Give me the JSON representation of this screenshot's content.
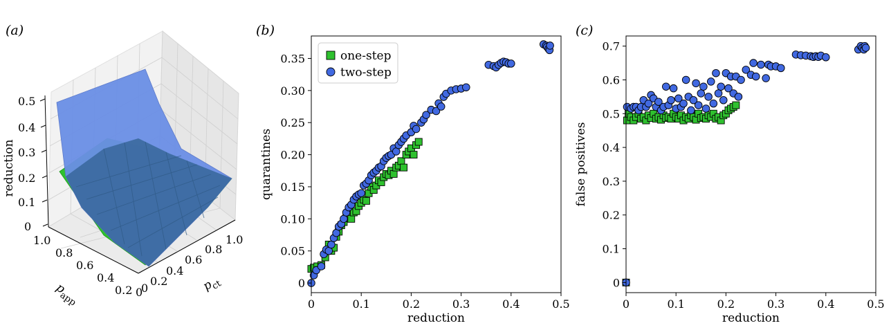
{
  "figure": {
    "panels": [
      {
        "label": "(a)"
      },
      {
        "label": "(b)"
      },
      {
        "label": "(c)"
      }
    ],
    "surface": {
      "zlabel": "reduction",
      "xlabel_main": "p",
      "xlabel_sub": "app",
      "ylabel_main": "p",
      "ylabel_sub": "ct",
      "zticks": [
        "0",
        "0.1",
        "0.2",
        "0.3",
        "0.4",
        "0.5"
      ],
      "xticks": [
        "1.0",
        "0.8",
        "0.6",
        "0.4",
        "0.2",
        "0"
      ],
      "yticks": [
        "0",
        "0.2",
        "0.4",
        "0.6",
        "0.8",
        "1.0"
      ],
      "colors": {
        "upper": "#6b8fe6",
        "lower": "#2fc12f",
        "mixed": "#3c6aa0"
      }
    }
  },
  "chart_data": [
    {
      "type": "scatter",
      "panel": "(b)",
      "xlabel": "reduction",
      "ylabel": "quarantines",
      "xlim": [
        0,
        0.5
      ],
      "ylim": [
        -0.015,
        0.385
      ],
      "xticks": [
        0,
        0.1,
        0.2,
        0.3,
        0.4,
        0.5
      ],
      "xtick_labels": [
        "0",
        "0.1",
        "0.2",
        "0.3",
        "0.4",
        "0.5"
      ],
      "yticks": [
        0,
        0.05,
        0.1,
        0.15,
        0.2,
        0.25,
        0.3,
        0.35
      ],
      "ytick_labels": [
        "0",
        "0.05",
        "0.10",
        "0.15",
        "0.20",
        "0.25",
        "0.30",
        "0.35"
      ],
      "legend": "top-left",
      "grid": false,
      "series": [
        {
          "name": "one-step",
          "marker": "square",
          "color": "#2fc12f",
          "points": [
            [
              0.0,
              0.022
            ],
            [
              0.005,
              0.024
            ],
            [
              0.012,
              0.026
            ],
            [
              0.02,
              0.028
            ],
            [
              0.028,
              0.04
            ],
            [
              0.035,
              0.06
            ],
            [
              0.04,
              0.05
            ],
            [
              0.045,
              0.055
            ],
            [
              0.05,
              0.072
            ],
            [
              0.055,
              0.08
            ],
            [
              0.06,
              0.09
            ],
            [
              0.065,
              0.095
            ],
            [
              0.07,
              0.101
            ],
            [
              0.075,
              0.105
            ],
            [
              0.08,
              0.1
            ],
            [
              0.085,
              0.11
            ],
            [
              0.09,
              0.112
            ],
            [
              0.095,
              0.12
            ],
            [
              0.1,
              0.125
            ],
            [
              0.105,
              0.13
            ],
            [
              0.11,
              0.128
            ],
            [
              0.115,
              0.14
            ],
            [
              0.12,
              0.15
            ],
            [
              0.125,
              0.145
            ],
            [
              0.13,
              0.152
            ],
            [
              0.135,
              0.16
            ],
            [
              0.14,
              0.157
            ],
            [
              0.145,
              0.165
            ],
            [
              0.15,
              0.17
            ],
            [
              0.155,
              0.168
            ],
            [
              0.16,
              0.175
            ],
            [
              0.165,
              0.17
            ],
            [
              0.17,
              0.18
            ],
            [
              0.175,
              0.183
            ],
            [
              0.18,
              0.19
            ],
            [
              0.185,
              0.18
            ],
            [
              0.19,
              0.2
            ],
            [
              0.195,
              0.205
            ],
            [
              0.2,
              0.21
            ],
            [
              0.205,
              0.2
            ],
            [
              0.21,
              0.215
            ],
            [
              0.215,
              0.22
            ]
          ]
        },
        {
          "name": "two-step",
          "marker": "circle",
          "color": "#4169e1",
          "points": [
            [
              0.0,
              0.0
            ],
            [
              0.005,
              0.012
            ],
            [
              0.01,
              0.02
            ],
            [
              0.02,
              0.026
            ],
            [
              0.025,
              0.045
            ],
            [
              0.03,
              0.052
            ],
            [
              0.035,
              0.05
            ],
            [
              0.04,
              0.06
            ],
            [
              0.045,
              0.07
            ],
            [
              0.05,
              0.078
            ],
            [
              0.055,
              0.088
            ],
            [
              0.06,
              0.092
            ],
            [
              0.065,
              0.1
            ],
            [
              0.07,
              0.11
            ],
            [
              0.075,
              0.118
            ],
            [
              0.08,
              0.122
            ],
            [
              0.085,
              0.13
            ],
            [
              0.09,
              0.135
            ],
            [
              0.095,
              0.138
            ],
            [
              0.1,
              0.14
            ],
            [
              0.105,
              0.152
            ],
            [
              0.11,
              0.155
            ],
            [
              0.115,
              0.16
            ],
            [
              0.12,
              0.168
            ],
            [
              0.125,
              0.172
            ],
            [
              0.13,
              0.175
            ],
            [
              0.135,
              0.18
            ],
            [
              0.14,
              0.182
            ],
            [
              0.145,
              0.19
            ],
            [
              0.15,
              0.195
            ],
            [
              0.155,
              0.198
            ],
            [
              0.16,
              0.2
            ],
            [
              0.165,
              0.21
            ],
            [
              0.17,
              0.205
            ],
            [
              0.175,
              0.215
            ],
            [
              0.18,
              0.22
            ],
            [
              0.185,
              0.225
            ],
            [
              0.19,
              0.23
            ],
            [
              0.2,
              0.235
            ],
            [
              0.205,
              0.245
            ],
            [
              0.21,
              0.24
            ],
            [
              0.22,
              0.25
            ],
            [
              0.225,
              0.255
            ],
            [
              0.23,
              0.262
            ],
            [
              0.24,
              0.27
            ],
            [
              0.25,
              0.268
            ],
            [
              0.255,
              0.28
            ],
            [
              0.26,
              0.275
            ],
            [
              0.265,
              0.29
            ],
            [
              0.27,
              0.295
            ],
            [
              0.28,
              0.3
            ],
            [
              0.29,
              0.302
            ],
            [
              0.3,
              0.303
            ],
            [
              0.31,
              0.305
            ],
            [
              0.355,
              0.34
            ],
            [
              0.365,
              0.338
            ],
            [
              0.37,
              0.336
            ],
            [
              0.375,
              0.34
            ],
            [
              0.38,
              0.343
            ],
            [
              0.385,
              0.345
            ],
            [
              0.39,
              0.344
            ],
            [
              0.395,
              0.342
            ],
            [
              0.4,
              0.342
            ],
            [
              0.465,
              0.372
            ],
            [
              0.47,
              0.37
            ],
            [
              0.472,
              0.368
            ],
            [
              0.475,
              0.365
            ],
            [
              0.477,
              0.363
            ],
            [
              0.478,
              0.37
            ]
          ]
        }
      ]
    },
    {
      "type": "scatter",
      "panel": "(c)",
      "xlabel": "reduction",
      "ylabel": "false positives",
      "xlim": [
        0,
        0.5
      ],
      "ylim": [
        -0.03,
        0.73
      ],
      "xticks": [
        0,
        0.1,
        0.2,
        0.3,
        0.4,
        0.5
      ],
      "xtick_labels": [
        "0",
        "0.1",
        "0.2",
        "0.3",
        "0.4",
        "0.5"
      ],
      "yticks": [
        0,
        0.1,
        0.2,
        0.3,
        0.4,
        0.5,
        0.6,
        0.7
      ],
      "ytick_labels": [
        "0",
        "0.1",
        "0.2",
        "0.3",
        "0.4",
        "0.5",
        "0.6",
        "0.7"
      ],
      "grid": false,
      "series": [
        {
          "name": "one-step",
          "marker": "square",
          "color": "#2fc12f",
          "points": [
            [
              0.0,
              0.0
            ],
            [
              0.002,
              0.48
            ],
            [
              0.005,
              0.5
            ],
            [
              0.01,
              0.49
            ],
            [
              0.015,
              0.48
            ],
            [
              0.02,
              0.49
            ],
            [
              0.025,
              0.5
            ],
            [
              0.03,
              0.485
            ],
            [
              0.035,
              0.49
            ],
            [
              0.04,
              0.48
            ],
            [
              0.045,
              0.495
            ],
            [
              0.05,
              0.487
            ],
            [
              0.055,
              0.5
            ],
            [
              0.06,
              0.485
            ],
            [
              0.065,
              0.49
            ],
            [
              0.07,
              0.482
            ],
            [
              0.075,
              0.495
            ],
            [
              0.08,
              0.487
            ],
            [
              0.085,
              0.49
            ],
            [
              0.09,
              0.485
            ],
            [
              0.095,
              0.5
            ],
            [
              0.1,
              0.49
            ],
            [
              0.105,
              0.485
            ],
            [
              0.11,
              0.495
            ],
            [
              0.115,
              0.48
            ],
            [
              0.12,
              0.49
            ],
            [
              0.125,
              0.485
            ],
            [
              0.13,
              0.495
            ],
            [
              0.135,
              0.49
            ],
            [
              0.14,
              0.482
            ],
            [
              0.145,
              0.5
            ],
            [
              0.15,
              0.487
            ],
            [
              0.155,
              0.49
            ],
            [
              0.16,
              0.485
            ],
            [
              0.165,
              0.495
            ],
            [
              0.17,
              0.49
            ],
            [
              0.175,
              0.5
            ],
            [
              0.18,
              0.485
            ],
            [
              0.185,
              0.49
            ],
            [
              0.19,
              0.48
            ],
            [
              0.195,
              0.495
            ],
            [
              0.2,
              0.5
            ],
            [
              0.205,
              0.51
            ],
            [
              0.21,
              0.515
            ],
            [
              0.215,
              0.52
            ],
            [
              0.22,
              0.525
            ]
          ]
        },
        {
          "name": "two-step",
          "marker": "circle",
          "color": "#4169e1",
          "points": [
            [
              0.0,
              0.0
            ],
            [
              0.002,
              0.52
            ],
            [
              0.01,
              0.515
            ],
            [
              0.015,
              0.52
            ],
            [
              0.02,
              0.52
            ],
            [
              0.025,
              0.51
            ],
            [
              0.03,
              0.52
            ],
            [
              0.035,
              0.54
            ],
            [
              0.04,
              0.52
            ],
            [
              0.045,
              0.53
            ],
            [
              0.05,
              0.555
            ],
            [
              0.055,
              0.545
            ],
            [
              0.06,
              0.52
            ],
            [
              0.065,
              0.535
            ],
            [
              0.07,
              0.51
            ],
            [
              0.075,
              0.52
            ],
            [
              0.08,
              0.58
            ],
            [
              0.085,
              0.525
            ],
            [
              0.09,
              0.54
            ],
            [
              0.095,
              0.575
            ],
            [
              0.1,
              0.515
            ],
            [
              0.105,
              0.545
            ],
            [
              0.11,
              0.52
            ],
            [
              0.115,
              0.53
            ],
            [
              0.12,
              0.6
            ],
            [
              0.125,
              0.55
            ],
            [
              0.13,
              0.51
            ],
            [
              0.135,
              0.54
            ],
            [
              0.14,
              0.59
            ],
            [
              0.145,
              0.525
            ],
            [
              0.15,
              0.56
            ],
            [
              0.155,
              0.58
            ],
            [
              0.16,
              0.515
            ],
            [
              0.165,
              0.55
            ],
            [
              0.17,
              0.595
            ],
            [
              0.175,
              0.53
            ],
            [
              0.18,
              0.62
            ],
            [
              0.185,
              0.56
            ],
            [
              0.19,
              0.58
            ],
            [
              0.195,
              0.54
            ],
            [
              0.2,
              0.62
            ],
            [
              0.205,
              0.575
            ],
            [
              0.21,
              0.61
            ],
            [
              0.215,
              0.56
            ],
            [
              0.22,
              0.61
            ],
            [
              0.225,
              0.55
            ],
            [
              0.23,
              0.6
            ],
            [
              0.24,
              0.63
            ],
            [
              0.25,
              0.615
            ],
            [
              0.255,
              0.65
            ],
            [
              0.26,
              0.61
            ],
            [
              0.27,
              0.645
            ],
            [
              0.28,
              0.605
            ],
            [
              0.285,
              0.645
            ],
            [
              0.29,
              0.64
            ],
            [
              0.3,
              0.64
            ],
            [
              0.31,
              0.635
            ],
            [
              0.34,
              0.675
            ],
            [
              0.35,
              0.673
            ],
            [
              0.36,
              0.672
            ],
            [
              0.37,
              0.67
            ],
            [
              0.375,
              0.668
            ],
            [
              0.38,
              0.67
            ],
            [
              0.385,
              0.668
            ],
            [
              0.39,
              0.672
            ],
            [
              0.4,
              0.667
            ],
            [
              0.465,
              0.69
            ],
            [
              0.47,
              0.7
            ],
            [
              0.473,
              0.695
            ],
            [
              0.476,
              0.69
            ],
            [
              0.478,
              0.7
            ],
            [
              0.48,
              0.695
            ]
          ]
        }
      ]
    }
  ]
}
